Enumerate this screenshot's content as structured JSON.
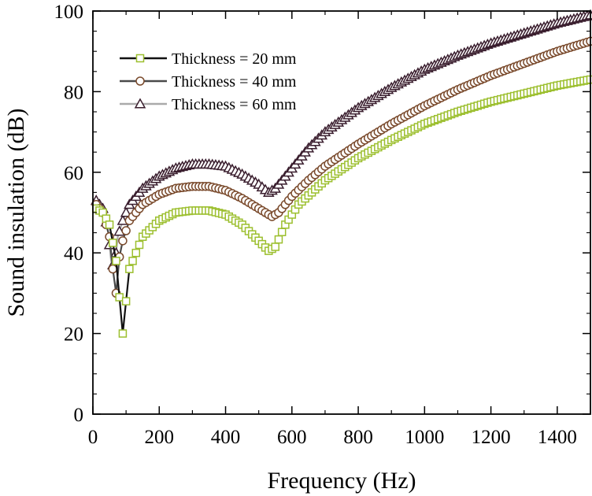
{
  "chart_data": {
    "type": "line",
    "title": "",
    "xlabel": "Frequency (Hz)",
    "ylabel": "Sound insulation (dB)",
    "xlim": [
      0,
      1500
    ],
    "ylim": [
      0,
      100
    ],
    "xticks": [
      0,
      200,
      400,
      600,
      800,
      1000,
      1200,
      1400
    ],
    "yticks": [
      0,
      20,
      40,
      60,
      80,
      100
    ],
    "xtick_labels": [
      "0",
      "200",
      "400",
      "600",
      "800",
      "1000",
      "1200",
      "1400"
    ],
    "ytick_labels": [
      "0",
      "20",
      "40",
      "60",
      "80",
      "100"
    ],
    "grid": false,
    "legend_position": "top-left",
    "series": [
      {
        "name": "Thickness = 20 mm",
        "marker": "square",
        "line_color": "#111111",
        "marker_color": "#9cbf2e",
        "x": [
          10,
          30,
          50,
          70,
          90,
          110,
          150,
          200,
          250,
          300,
          350,
          400,
          450,
          500,
          530,
          550,
          580,
          620,
          700,
          800,
          900,
          1000,
          1100,
          1200,
          1300,
          1400,
          1500
        ],
        "y": [
          51,
          50,
          47,
          38,
          20,
          36,
          44,
          48,
          50,
          50.5,
          50.5,
          49.5,
          47,
          43,
          40.5,
          41.5,
          47,
          52,
          58,
          63.5,
          68,
          72,
          75,
          77.5,
          79.5,
          81.5,
          83
        ]
      },
      {
        "name": "Thickness = 40 mm",
        "marker": "circle",
        "line_color": "#4a4a4a",
        "marker_color": "#7a4a2c",
        "x": [
          10,
          30,
          50,
          60,
          70,
          80,
          90,
          110,
          150,
          200,
          250,
          300,
          350,
          400,
          450,
          500,
          540,
          560,
          600,
          650,
          700,
          800,
          900,
          1000,
          1100,
          1200,
          1300,
          1400,
          1500
        ],
        "y": [
          52,
          50,
          44,
          36,
          30,
          39,
          43,
          48,
          52,
          54.5,
          56,
          56.5,
          56.5,
          55.5,
          53.5,
          51,
          49,
          50,
          54,
          58,
          61.5,
          67,
          72,
          76.5,
          80.5,
          84,
          87,
          90,
          92.5
        ]
      },
      {
        "name": "Thickness = 60 mm",
        "marker": "triangle",
        "line_color": "#aaaaaa",
        "marker_color": "#3a1e2e",
        "x": [
          10,
          30,
          45,
          55,
          65,
          75,
          90,
          110,
          150,
          200,
          250,
          300,
          350,
          400,
          450,
          500,
          530,
          550,
          600,
          650,
          700,
          800,
          900,
          1000,
          1100,
          1200,
          1300,
          1400,
          1500
        ],
        "y": [
          53,
          51,
          46,
          38,
          36,
          44,
          48,
          52,
          56,
          59,
          61,
          62,
          62,
          61.5,
          59.5,
          57,
          55,
          56,
          61,
          66,
          70,
          76,
          81,
          85.5,
          89,
          92,
          94.5,
          97,
          99
        ]
      }
    ]
  }
}
